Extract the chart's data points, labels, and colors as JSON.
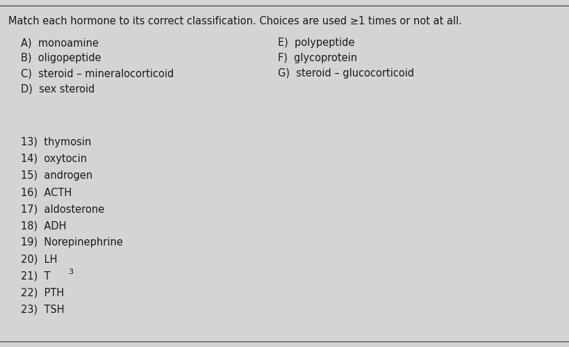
{
  "title": "Match each hormone to its correct classification. Choices are used ≥1 times or not at all.",
  "bg_color": "#d4d4d4",
  "card_color": "#e0e0e0",
  "text_color": "#1a1a1a",
  "font_size": 10.5,
  "choices_left": [
    "A)  monoamine",
    "B)  oligopeptide",
    "C)  steroid – mineralocorticoid",
    "D)  sex steroid"
  ],
  "choices_right": [
    "E)  polypeptide",
    "F)  glycoprotein",
    "G)  steroid – glucocorticoid"
  ],
  "questions": [
    "13)  thymosin",
    "14)  oxytocin",
    "15)  androgen",
    "16)  ACTH",
    "17)  aldosterone",
    "18)  ADH",
    "19)  Norepinephrine",
    "20)  LH",
    "22)  PTH",
    "23)  TSH"
  ],
  "t3_label": "21)  T",
  "t3_sub": "3",
  "t3_index": 8
}
